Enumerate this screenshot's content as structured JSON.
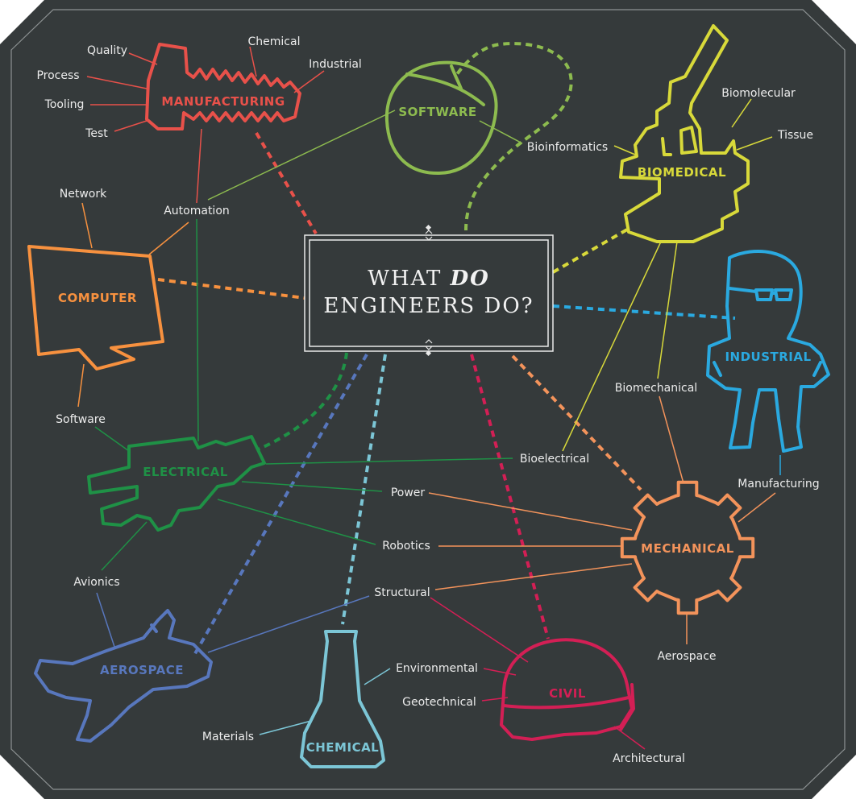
{
  "title": {
    "pre": "WHAT ",
    "em": "DO",
    "line2": "ENGINEERS DO?"
  },
  "colors": {
    "background": "#353a3b",
    "manufacturing": "#e8514a",
    "software": "#8dbb4f",
    "biomedical": "#d8d93a",
    "computer": "#f7913f",
    "industrial": "#2aa9e0",
    "electrical": "#1f9146",
    "mechanical": "#f3935b",
    "aerospace": "#5877bd",
    "chemical": "#7cc6d6",
    "civil": "#d31f55"
  },
  "categories": {
    "manufacturing": "MANUFACTURING",
    "software": "SOFTWARE",
    "biomedical": "BIOMEDICAL",
    "computer": "COMPUTER",
    "industrial": "INDUSTRIAL",
    "electrical": "ELECTRICAL",
    "mechanical": "MECHANICAL",
    "aerospace": "AEROSPACE",
    "chemical": "CHEMICAL",
    "civil": "CIVIL"
  },
  "disciplines": {
    "quality": "Quality",
    "chemical": "Chemical",
    "industrial": "Industrial",
    "process": "Process",
    "tooling": "Tooling",
    "test": "Test",
    "network": "Network",
    "automation": "Automation",
    "biomolecular": "Biomolecular",
    "tissue": "Tissue",
    "bioinformatics": "Bioinformatics",
    "biomechanical": "Biomechanical",
    "software": "Software",
    "bioelectrical": "Bioelectrical",
    "manufacturing": "Manufacturing",
    "power": "Power",
    "robotics": "Robotics",
    "avionics": "Avionics",
    "structural": "Structural",
    "aerospace": "Aerospace",
    "environmental": "Environmental",
    "geotechnical": "Geotechnical",
    "materials": "Materials",
    "architectural": "Architectural"
  }
}
